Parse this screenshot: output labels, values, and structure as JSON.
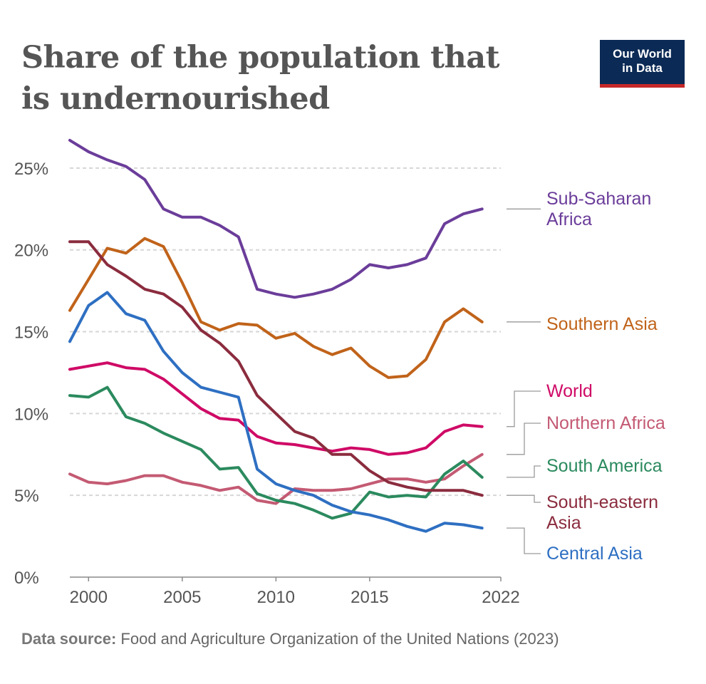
{
  "header": {
    "title": "Share of the population that is undernourished",
    "logo_line1": "Our World",
    "logo_line2": "in Data"
  },
  "footer": {
    "source_label": "Data source:",
    "source_text": "Food and Agriculture Organization of the United Nations (2023)"
  },
  "chart_data": {
    "type": "line",
    "title": "Share of the population that is undernourished",
    "xlabel": "",
    "ylabel": "",
    "xlim": [
      1999,
      2022
    ],
    "ylim": [
      0,
      27
    ],
    "x_ticks": [
      {
        "value": 2000,
        "label": "2000"
      },
      {
        "value": 2005,
        "label": "2005"
      },
      {
        "value": 2010,
        "label": "2010"
      },
      {
        "value": 2015,
        "label": "2015"
      },
      {
        "value": 2022,
        "label": "2022"
      }
    ],
    "y_ticks": [
      {
        "value": 0,
        "label": "0%"
      },
      {
        "value": 5,
        "label": "5%"
      },
      {
        "value": 10,
        "label": "10%"
      },
      {
        "value": 15,
        "label": "15%"
      },
      {
        "value": 20,
        "label": "20%"
      },
      {
        "value": 25,
        "label": "25%"
      }
    ],
    "grid": "horizontal dashed",
    "legend": "labels at line ends (right)",
    "x": [
      1999,
      2000,
      2001,
      2002,
      2003,
      2004,
      2005,
      2006,
      2007,
      2008,
      2009,
      2010,
      2011,
      2012,
      2013,
      2014,
      2015,
      2016,
      2017,
      2018,
      2019,
      2020,
      2021,
      2022
    ],
    "series": [
      {
        "name": "Sub-Saharan Africa",
        "label_lines": [
          "Sub-Saharan",
          "Africa"
        ],
        "color": "#6b3d9a",
        "values": [
          26.7,
          26.0,
          25.5,
          25.1,
          24.3,
          22.5,
          22.0,
          22.0,
          21.5,
          20.8,
          17.6,
          17.3,
          17.1,
          17.3,
          17.6,
          18.2,
          19.1,
          18.9,
          19.1,
          19.5,
          21.6,
          22.2,
          22.5,
          null
        ]
      },
      {
        "name": "Southern Asia",
        "label_lines": [
          "Southern Asia"
        ],
        "color": "#c0631a",
        "values": [
          16.3,
          18.2,
          20.1,
          19.8,
          20.7,
          20.2,
          18.0,
          15.6,
          15.1,
          15.5,
          15.4,
          14.6,
          14.9,
          14.1,
          13.6,
          14.0,
          12.9,
          12.2,
          12.3,
          13.3,
          15.6,
          16.4,
          15.6,
          null
        ]
      },
      {
        "name": "World",
        "label_lines": [
          "World"
        ],
        "color": "#cf0a66",
        "values": [
          12.7,
          12.9,
          13.1,
          12.8,
          12.7,
          12.1,
          11.2,
          10.3,
          9.7,
          9.6,
          8.6,
          8.2,
          8.1,
          7.9,
          7.7,
          7.9,
          7.8,
          7.5,
          7.6,
          7.9,
          8.9,
          9.3,
          9.2,
          null
        ]
      },
      {
        "name": "Northern Africa",
        "label_lines": [
          "Northern Africa"
        ],
        "color": "#c45a73",
        "values": [
          6.3,
          5.8,
          5.7,
          5.9,
          6.2,
          6.2,
          5.8,
          5.6,
          5.3,
          5.5,
          4.7,
          4.5,
          5.4,
          5.3,
          5.3,
          5.4,
          5.7,
          6.0,
          6.0,
          5.8,
          6.0,
          6.8,
          7.5,
          null
        ]
      },
      {
        "name": "South America",
        "label_lines": [
          "South America"
        ],
        "color": "#2b8a5e",
        "values": [
          11.1,
          11.0,
          11.6,
          9.8,
          9.4,
          8.8,
          8.3,
          7.8,
          6.6,
          6.7,
          5.1,
          4.7,
          4.5,
          4.1,
          3.6,
          3.9,
          5.2,
          4.9,
          5.0,
          4.9,
          6.3,
          7.1,
          6.1,
          null
        ]
      },
      {
        "name": "South-eastern Asia",
        "label_lines": [
          "South-eastern",
          "Asia"
        ],
        "color": "#8b2c3e",
        "values": [
          20.5,
          20.5,
          19.1,
          18.4,
          17.6,
          17.3,
          16.5,
          15.1,
          14.3,
          13.2,
          11.1,
          10.0,
          8.9,
          8.5,
          7.5,
          7.5,
          6.5,
          5.8,
          5.5,
          5.3,
          5.3,
          5.3,
          5.0,
          null
        ]
      },
      {
        "name": "Central Asia",
        "label_lines": [
          "Central Asia"
        ],
        "color": "#2e6fc2",
        "values": [
          14.4,
          16.6,
          17.4,
          16.1,
          15.7,
          13.8,
          12.5,
          11.6,
          11.3,
          11.0,
          6.6,
          5.7,
          5.3,
          5.0,
          4.4,
          4.0,
          3.8,
          3.5,
          3.1,
          2.8,
          3.3,
          3.2,
          3.0,
          null
        ]
      }
    ]
  }
}
